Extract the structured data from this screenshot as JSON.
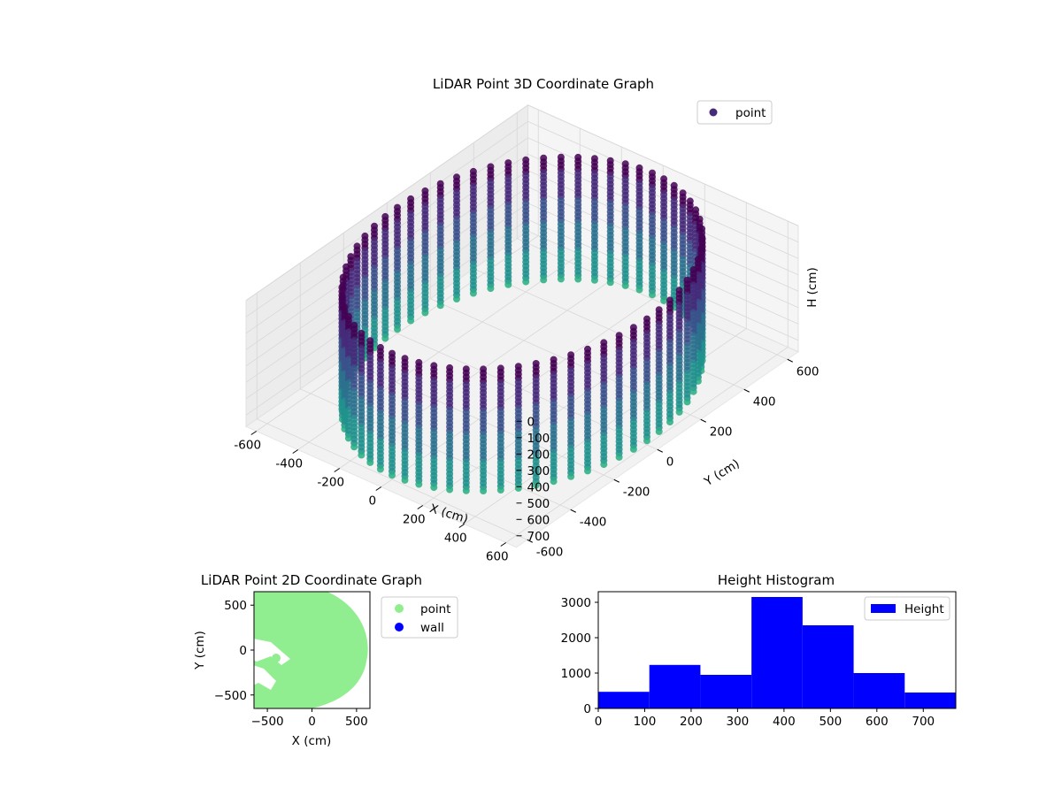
{
  "chart_data": [
    {
      "type": "scatter",
      "projection": "3d",
      "title": "LiDAR Point 3D Coordinate Graph",
      "xlabel": "X (cm)",
      "ylabel": "Y (cm)",
      "zlabel": "H (cm)",
      "xlim": [
        -650,
        650
      ],
      "ylim": [
        -650,
        650
      ],
      "zlim": [
        770,
        0
      ],
      "zaxis_inverted": true,
      "xticks": [
        "-600",
        "-400",
        "-200",
        "0",
        "200",
        "400",
        "600"
      ],
      "yticks": [
        "-600",
        "-400",
        "-200",
        "0",
        "200",
        "400",
        "600"
      ],
      "zticks": [
        "0",
        "100",
        "200",
        "300",
        "400",
        "500",
        "600",
        "700"
      ],
      "colormap": "viridis",
      "legend": {
        "entries": [
          "point"
        ],
        "placement": "upper-right"
      },
      "grid": true,
      "series": [
        {
          "name": "point",
          "description_of_shape": "cylindrical wall",
          "radius": 600,
          "h_range": [
            0,
            760
          ],
          "color_by": "height"
        }
      ]
    },
    {
      "type": "scatter",
      "title": "LiDAR Point 2D Coordinate Graph",
      "xlabel": "X (cm)",
      "ylabel": "Y (cm)",
      "xlim": [
        -650,
        650
      ],
      "ylim": [
        -650,
        650
      ],
      "xticks": [
        "-500",
        "0",
        "500"
      ],
      "yticks": [
        "500",
        "0",
        "-500"
      ],
      "legend": {
        "entries": [
          "point",
          "wall"
        ],
        "placement": "outside-right"
      },
      "series": [
        {
          "name": "point",
          "color": "#90ee90"
        },
        {
          "name": "wall",
          "color": "#0000ff"
        }
      ]
    },
    {
      "type": "bar",
      "subtype": "histogram",
      "title": "Height Histogram",
      "xlim": [
        0,
        770
      ],
      "ylim": [
        0,
        3300
      ],
      "xticks": [
        "0",
        "100",
        "200",
        "300",
        "400",
        "500",
        "600",
        "700"
      ],
      "yticks": [
        "0",
        "1000",
        "2000",
        "3000"
      ],
      "bin_edges": [
        0,
        110,
        220,
        330,
        440,
        550,
        660,
        770
      ],
      "series": [
        {
          "name": "Height",
          "color": "#0000ff",
          "values": [
            470,
            1230,
            950,
            3150,
            2350,
            1000,
            450
          ]
        }
      ],
      "legend": {
        "entries": [
          "Height"
        ],
        "placement": "upper-right"
      }
    }
  ]
}
